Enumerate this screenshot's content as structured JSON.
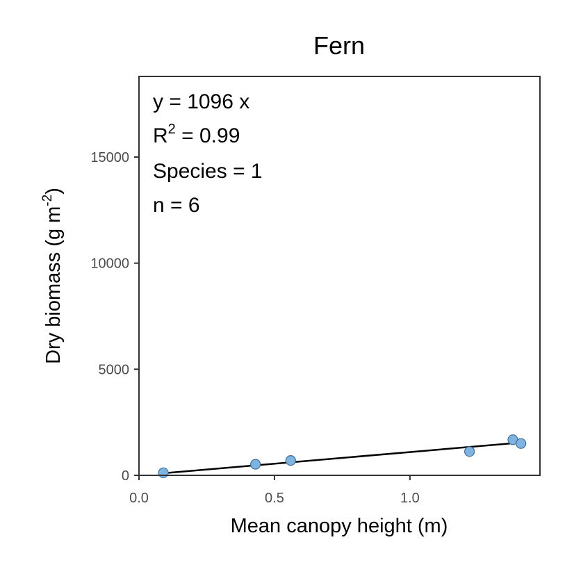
{
  "chart_data": {
    "type": "scatter",
    "title": "Fern",
    "xlabel": "Mean canopy height (m)",
    "ylabel_main": "Dry biomass (g m",
    "ylabel_sup": "-2",
    "ylabel_close": ")",
    "xlim": [
      0.0,
      1.48
    ],
    "ylim": [
      0,
      18800
    ],
    "xticks": [
      0.0,
      0.5,
      1.0
    ],
    "xtick_labels": [
      "0.0",
      "0.5",
      "1.0"
    ],
    "yticks": [
      0,
      5000,
      10000,
      15000
    ],
    "ytick_labels": [
      "0",
      "5000",
      "10000",
      "15000"
    ],
    "points": [
      {
        "x": 0.09,
        "y": 120
      },
      {
        "x": 0.43,
        "y": 520
      },
      {
        "x": 0.56,
        "y": 700
      },
      {
        "x": 1.22,
        "y": 1120
      },
      {
        "x": 1.38,
        "y": 1680
      },
      {
        "x": 1.41,
        "y": 1500
      }
    ],
    "fit": {
      "slope": 1096,
      "x_start": 0.09,
      "x_end": 1.41
    },
    "annotations": {
      "equation": "y = 1096 x",
      "r2_label": "R",
      "r2_sup": "2",
      "r2_value": " = 0.99",
      "species": "Species = 1",
      "n": "n = 6"
    },
    "point_color": "#7fb3e0",
    "point_stroke": "#3f6f99",
    "line_color": "#000000"
  }
}
